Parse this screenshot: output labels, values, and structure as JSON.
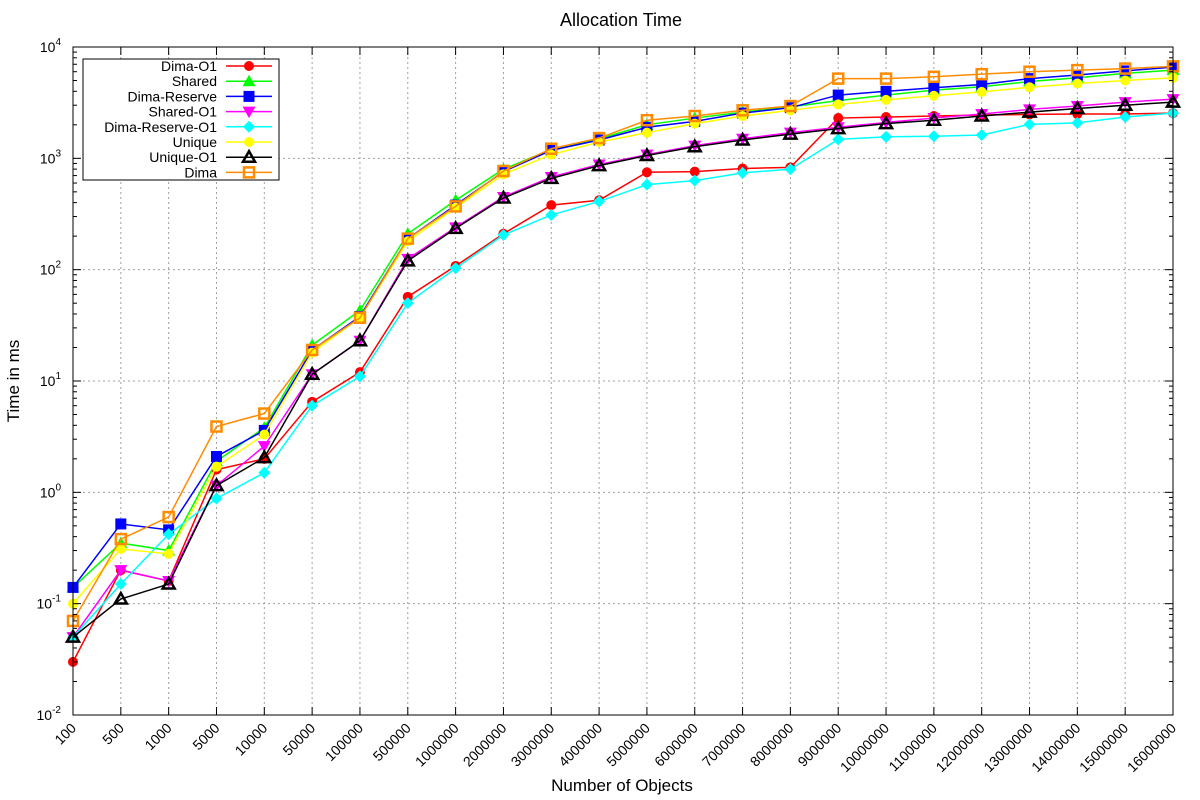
{
  "chart_data": {
    "type": "line",
    "title": "Allocation Time",
    "xlabel": "Number of Objects",
    "ylabel": "Time in ms",
    "yscale": "log",
    "ylim": [
      0.01,
      10000
    ],
    "y_ticks": [
      {
        "base": "10",
        "exp": "-2",
        "value": 0.01
      },
      {
        "base": "10",
        "exp": "-1",
        "value": 0.1
      },
      {
        "base": "10",
        "exp": "0",
        "value": 1
      },
      {
        "base": "10",
        "exp": "1",
        "value": 10
      },
      {
        "base": "10",
        "exp": "2",
        "value": 100
      },
      {
        "base": "10",
        "exp": "3",
        "value": 1000
      },
      {
        "base": "10",
        "exp": "4",
        "value": 10000
      }
    ],
    "grid": true,
    "legend_position": "top-left",
    "categories": [
      "100",
      "500",
      "1000",
      "5000",
      "10000",
      "50000",
      "100000",
      "500000",
      "1000000",
      "2000000",
      "3000000",
      "4000000",
      "5000000",
      "6000000",
      "7000000",
      "8000000",
      "9000000",
      "10000000",
      "11000000",
      "12000000",
      "13000000",
      "14000000",
      "15000000",
      "16000000"
    ],
    "series": [
      {
        "name": "Dima-O1",
        "color": "#ff0000",
        "marker": "circle",
        "values": [
          0.03,
          0.2,
          0.16,
          1.6,
          2.0,
          6.5,
          12,
          57,
          108,
          210,
          380,
          420,
          750,
          760,
          810,
          830,
          2300,
          2350,
          2400,
          2450,
          2480,
          2500,
          2500,
          2550
        ]
      },
      {
        "name": "Shared",
        "color": "#00ff00",
        "marker": "triangle-up",
        "values": [
          0.14,
          0.35,
          0.3,
          1.9,
          3.8,
          21,
          43,
          210,
          420,
          800,
          1200,
          1500,
          2000,
          2300,
          2600,
          2900,
          3300,
          3700,
          4100,
          4400,
          4900,
          5300,
          5800,
          6200
        ]
      },
      {
        "name": "Dima-Reserve",
        "color": "#0000ff",
        "marker": "square",
        "values": [
          0.14,
          0.52,
          0.46,
          2.1,
          3.6,
          19,
          38,
          190,
          380,
          760,
          1180,
          1460,
          1900,
          2150,
          2550,
          2850,
          3700,
          4000,
          4300,
          4600,
          5200,
          5600,
          6100,
          6600
        ]
      },
      {
        "name": "Shared-O1",
        "color": "#ff00ff",
        "marker": "triangle-down",
        "values": [
          0.05,
          0.2,
          0.16,
          1.15,
          2.6,
          11.5,
          23,
          125,
          240,
          450,
          680,
          880,
          1080,
          1300,
          1500,
          1700,
          1900,
          2100,
          2300,
          2500,
          2750,
          2950,
          3200,
          3400
        ]
      },
      {
        "name": "Dima-Reserve-O1",
        "color": "#00ffff",
        "marker": "diamond",
        "values": [
          0.05,
          0.15,
          0.42,
          0.88,
          1.5,
          6,
          11,
          50,
          103,
          205,
          310,
          410,
          580,
          630,
          740,
          800,
          1480,
          1560,
          1580,
          1620,
          2020,
          2080,
          2350,
          2550
        ]
      },
      {
        "name": "Unique",
        "color": "#ffff00",
        "marker": "circle",
        "values": [
          0.1,
          0.31,
          0.28,
          1.7,
          3.3,
          18,
          37,
          180,
          360,
          720,
          1080,
          1400,
          1700,
          2050,
          2400,
          2700,
          3050,
          3350,
          3650,
          3950,
          4350,
          4700,
          5000,
          5300
        ]
      },
      {
        "name": "Unique-O1",
        "color": "#000000",
        "marker": "triangle-up-open",
        "values": [
          0.05,
          0.11,
          0.15,
          1.15,
          2.05,
          11.5,
          23,
          120,
          235,
          440,
          660,
          860,
          1060,
          1270,
          1460,
          1650,
          1850,
          2050,
          2200,
          2400,
          2600,
          2800,
          3000,
          3200
        ]
      },
      {
        "name": "Dima",
        "color": "#ff8c00",
        "marker": "square-open",
        "values": [
          0.07,
          0.38,
          0.6,
          3.9,
          5.1,
          19,
          37,
          190,
          370,
          770,
          1220,
          1520,
          2200,
          2400,
          2700,
          2950,
          5200,
          5200,
          5400,
          5700,
          6000,
          6200,
          6400,
          6700
        ]
      }
    ]
  }
}
